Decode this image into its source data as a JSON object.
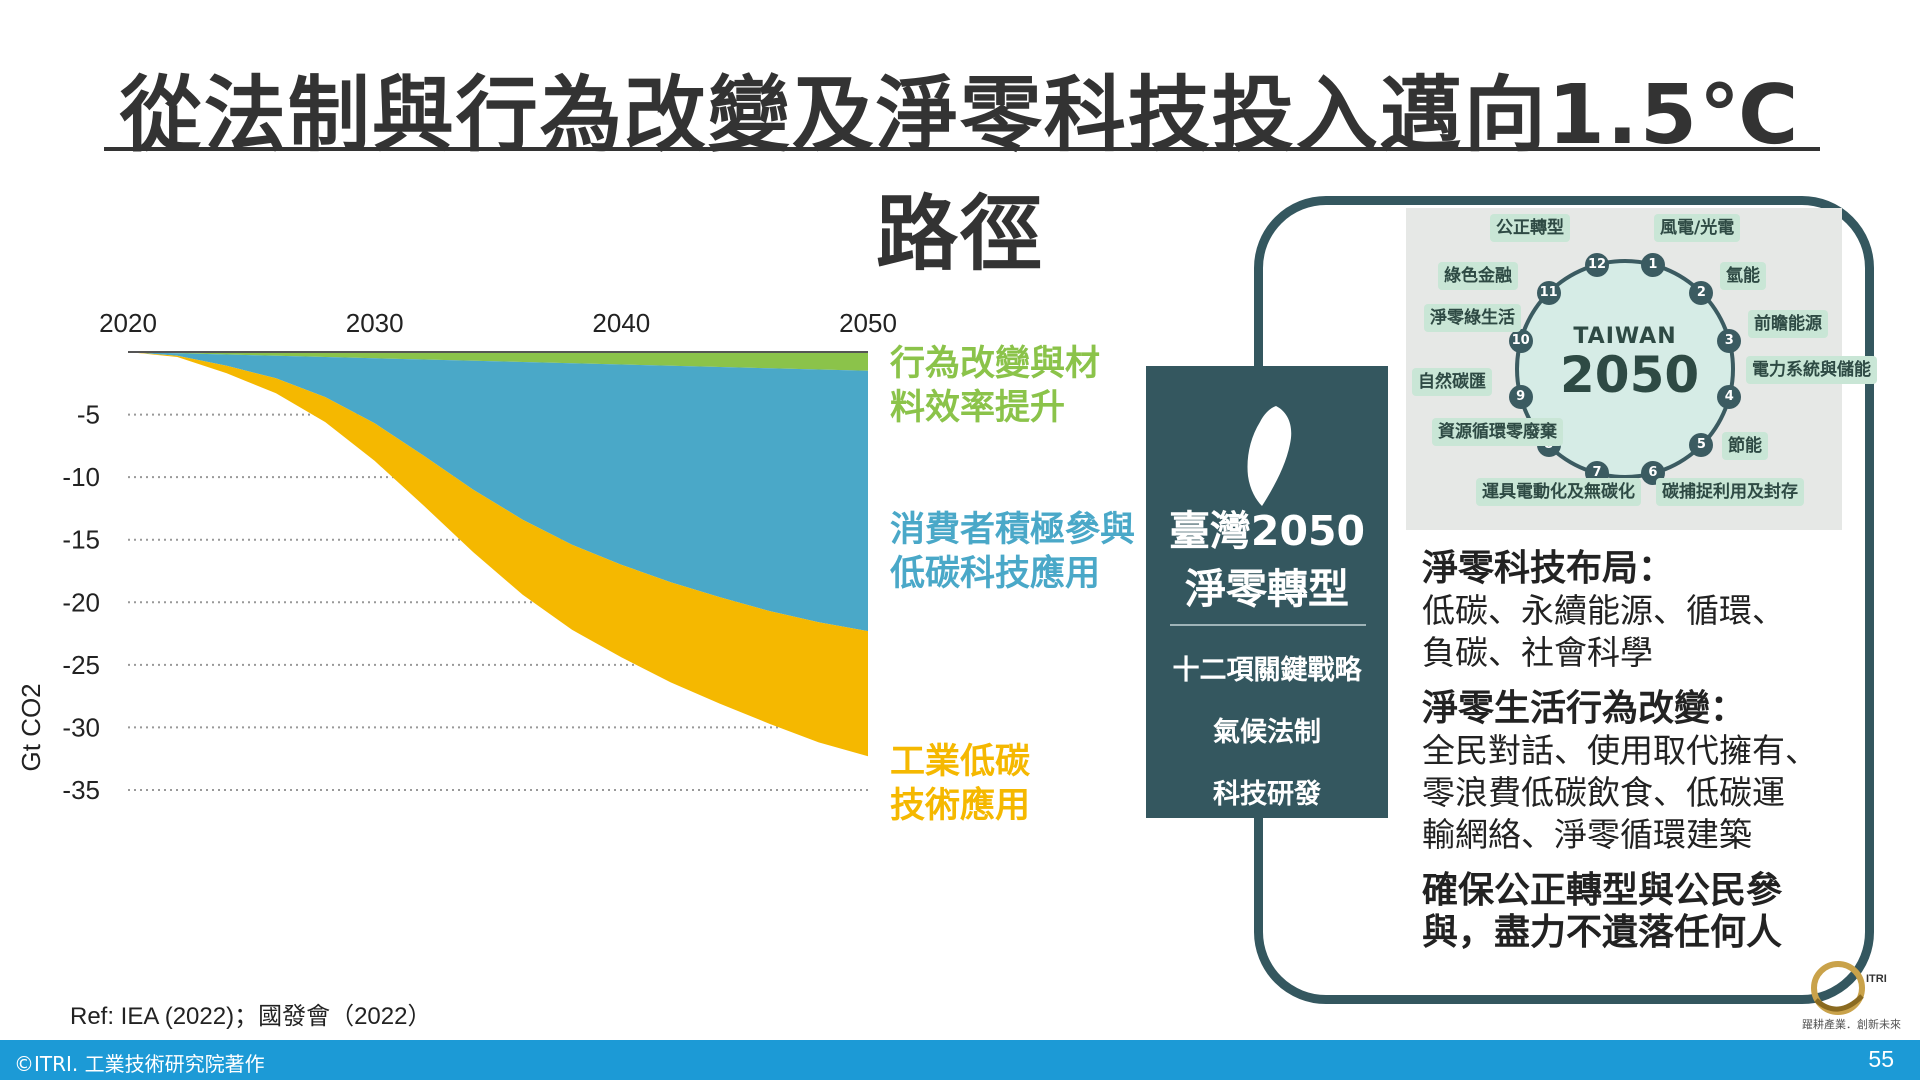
{
  "title": "從法制與行為改變及淨零科技投入邁向1.5℃路徑",
  "chart_data": {
    "type": "area",
    "x_ticks": [
      "2020",
      "2030",
      "2040",
      "2050"
    ],
    "x": [
      2020,
      2022,
      2024,
      2026,
      2028,
      2030,
      2032,
      2034,
      2036,
      2038,
      2040,
      2042,
      2044,
      2046,
      2048,
      2050
    ],
    "ylabel": "Gt CO2",
    "y_ticks": [
      "-5",
      "-10",
      "-15",
      "-20",
      "-25",
      "-30",
      "-35"
    ],
    "ylim": [
      -35,
      0
    ],
    "xlim": [
      2020,
      2050
    ],
    "grid": true,
    "series": [
      {
        "name": "行為改變與材料效率提升",
        "color": "#8bc34a",
        "values": [
          0,
          -0.1,
          -0.2,
          -0.3,
          -0.4,
          -0.5,
          -0.6,
          -0.7,
          -0.8,
          -0.9,
          -1.0,
          -1.1,
          -1.2,
          -1.3,
          -1.4,
          -1.5
        ]
      },
      {
        "name": "消費者積極參與低碳科技應用",
        "color": "#4aa8c8",
        "values": [
          0,
          -0.2,
          -0.9,
          -1.8,
          -3.2,
          -5.2,
          -7.7,
          -10.3,
          -12.6,
          -14.5,
          -16.0,
          -17.3,
          -18.4,
          -19.4,
          -20.2,
          -20.8
        ]
      },
      {
        "name": "工業低碳技術應用",
        "color": "#f5b800",
        "values": [
          0,
          -0.1,
          -0.6,
          -1.2,
          -2.0,
          -3.0,
          -4.0,
          -5.0,
          -6.0,
          -6.8,
          -7.4,
          -8.0,
          -8.5,
          -9.0,
          -9.6,
          -10.0
        ]
      }
    ]
  },
  "legend": {
    "green_line1": "行為改變與材",
    "green_line2": "料效率提升",
    "blue_line1": "消費者積極參與",
    "blue_line2": "低碳科技應用",
    "yellow_line1": "工業低碳",
    "yellow_line2": "技術應用"
  },
  "panel": {
    "title_line1": "臺灣2050",
    "title_line2": "淨零轉型",
    "items": [
      "十二項關鍵戰略",
      "氣候法制",
      "科技研發"
    ]
  },
  "wheel": {
    "brand": "TAIWAN",
    "year": "2050",
    "labels": [
      {
        "num": "1",
        "text": "風電/光電"
      },
      {
        "num": "2",
        "text": "氫能"
      },
      {
        "num": "3",
        "text": "前瞻能源"
      },
      {
        "num": "4",
        "text": "電力系統與儲能"
      },
      {
        "num": "5",
        "text": "節能"
      },
      {
        "num": "6",
        "text": "碳捕捉利用及封存"
      },
      {
        "num": "7",
        "text": "運具電動化及無碳化"
      },
      {
        "num": "8",
        "text": "資源循環零廢棄"
      },
      {
        "num": "9",
        "text": "自然碳匯"
      },
      {
        "num": "10",
        "text": "淨零綠生活"
      },
      {
        "num": "11",
        "text": "綠色金融"
      },
      {
        "num": "12",
        "text": "公正轉型"
      }
    ]
  },
  "right_text": {
    "h1": "淨零科技布局：",
    "p1a": "低碳、永續能源、循環、",
    "p1b": "負碳、社會科學",
    "h2": "淨零生活行為改變：",
    "p2a": "全民對話、使用取代擁有、",
    "p2b": "零浪費低碳飲食、低碳運",
    "p2c": "輸網絡、淨零循環建築",
    "h3a": "確保公正轉型與公民參",
    "h3b": "與，盡力不遺落任何人"
  },
  "logo": {
    "mark": "ITRI",
    "caption": "躍耕產業．創新未來"
  },
  "ref": "Ref: IEA (2022)；國發會（2022）",
  "footer": {
    "left": "©ITRI. 工業技術研究院著作",
    "right": "55"
  }
}
